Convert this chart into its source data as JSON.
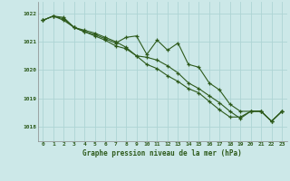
{
  "title": "Graphe pression niveau de la mer (hPa)",
  "bg_color": "#cce8e8",
  "grid_color": "#aed4d4",
  "line_color": "#2d5a1b",
  "marker_color": "#2d5a1b",
  "xlim": [
    -0.5,
    23.5
  ],
  "ylim": [
    1017.5,
    1022.4
  ],
  "yticks": [
    1018,
    1019,
    1020,
    1021,
    1022
  ],
  "xticks": [
    0,
    1,
    2,
    3,
    4,
    5,
    6,
    7,
    8,
    9,
    10,
    11,
    12,
    13,
    14,
    15,
    16,
    17,
    18,
    19,
    20,
    21,
    22,
    23
  ],
  "series": [
    [
      1021.75,
      1021.9,
      1021.85,
      1021.5,
      1021.35,
      1021.25,
      1021.1,
      1020.95,
      1021.15,
      1021.2,
      1020.55,
      1021.05,
      1020.7,
      1020.95,
      1020.2,
      1020.1,
      1019.55,
      1019.3,
      1018.8,
      1018.55,
      1018.55,
      1018.55,
      1018.2,
      1018.55
    ],
    [
      1021.75,
      1021.9,
      1021.75,
      1021.5,
      1021.35,
      1021.2,
      1021.05,
      1020.85,
      1020.75,
      1020.5,
      1020.45,
      1020.35,
      1020.15,
      1019.9,
      1019.55,
      1019.35,
      1019.1,
      1018.85,
      1018.55,
      1018.3,
      1018.55,
      1018.55,
      1018.2,
      1018.55
    ],
    [
      1021.75,
      1021.9,
      1021.8,
      1021.5,
      1021.4,
      1021.3,
      1021.15,
      1021.0,
      1020.8,
      1020.5,
      1020.2,
      1020.05,
      1019.8,
      1019.6,
      1019.35,
      1019.2,
      1018.9,
      1018.6,
      1018.35,
      1018.35,
      1018.55,
      1018.55,
      1018.2,
      1018.55
    ]
  ]
}
